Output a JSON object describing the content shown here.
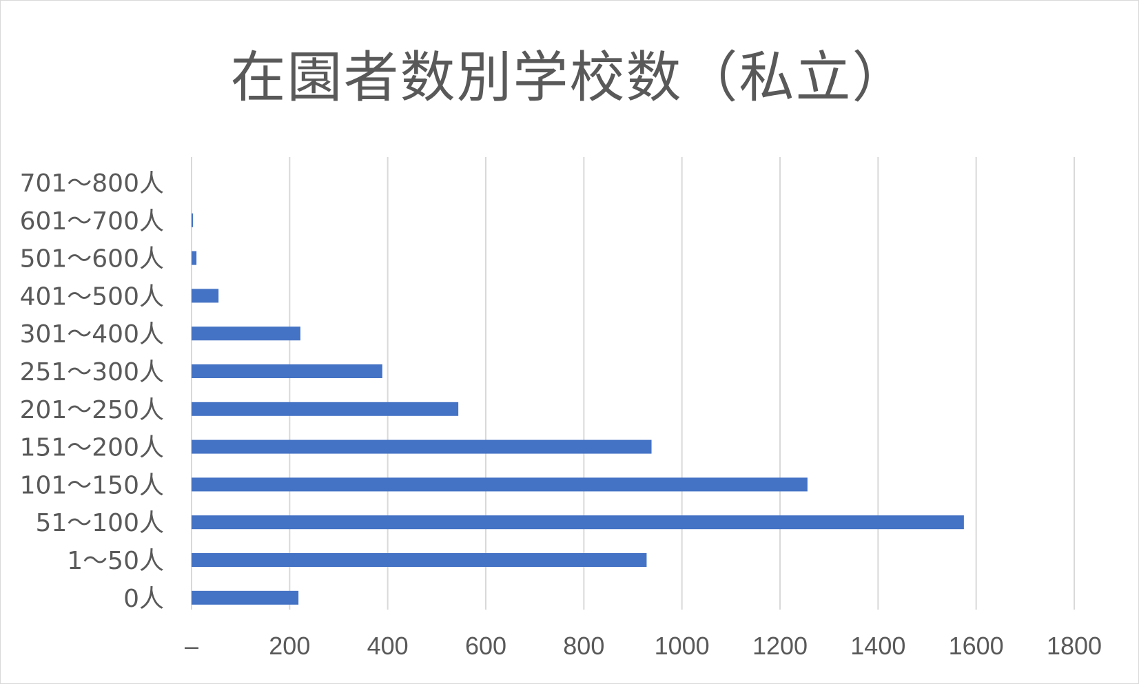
{
  "chart_data": {
    "type": "bar",
    "orientation": "horizontal",
    "title": "在園者数別学校数（私立）",
    "categories": [
      "0人",
      "1〜50人",
      "51〜100人",
      "101〜150人",
      "151〜200人",
      "201〜250人",
      "251〜300人",
      "301〜400人",
      "401〜500人",
      "501〜600人",
      "601〜700人",
      "701〜800人"
    ],
    "values": [
      218,
      928,
      1575,
      1256,
      938,
      544,
      389,
      222,
      55,
      10,
      3,
      0
    ],
    "xlim": [
      0,
      1800
    ],
    "x_ticks": [
      0,
      200,
      400,
      600,
      800,
      1000,
      1200,
      1400,
      1600,
      1800
    ],
    "x_tick_labels": [
      "–",
      "200",
      "400",
      "600",
      "800",
      "1000",
      "1200",
      "1400",
      "1600",
      "1800"
    ],
    "xlabel": "",
    "ylabel": "",
    "grid": true,
    "legend": "none",
    "bar_color": "#4472c4",
    "gridline_color": "#d9d9d9",
    "text_color": "#595959"
  }
}
